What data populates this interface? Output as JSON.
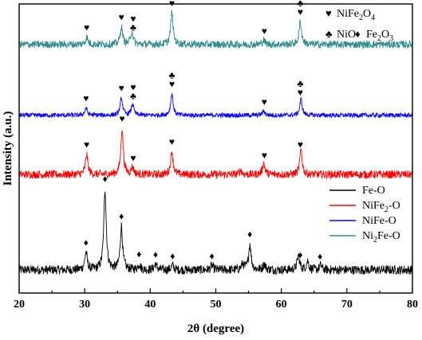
{
  "chart_data": {
    "type": "line",
    "xlabel": "2θ (degree)",
    "ylabel": "Intensity (a.u.)",
    "xlim": [
      20,
      80
    ],
    "x_ticks": [
      "20",
      "30",
      "40",
      "50",
      "60",
      "70",
      "80"
    ],
    "series": [
      {
        "name": "Fe-O",
        "color": "#000000",
        "baseline": 0.08,
        "noise": 0.016,
        "peaks": [
          {
            "x": 30.2,
            "h": 0.06
          },
          {
            "x": 33.1,
            "h": 0.28
          },
          {
            "x": 35.6,
            "h": 0.15
          },
          {
            "x": 38.3,
            "h": 0.02
          },
          {
            "x": 40.8,
            "h": 0.02
          },
          {
            "x": 43.4,
            "h": 0.015
          },
          {
            "x": 49.4,
            "h": 0.015
          },
          {
            "x": 54.1,
            "h": 0.02
          },
          {
            "x": 55.2,
            "h": 0.09
          },
          {
            "x": 57.4,
            "h": 0.02
          },
          {
            "x": 62.6,
            "h": 0.05
          },
          {
            "x": 64.0,
            "h": 0.03
          },
          {
            "x": 66.0,
            "h": 0.015
          }
        ],
        "markers": [
          {
            "x": 30.2,
            "sym": "♦"
          },
          {
            "x": 33.1,
            "sym": "♦"
          },
          {
            "x": 35.6,
            "sym": "♦"
          },
          {
            "x": 38.3,
            "sym": "♦"
          },
          {
            "x": 40.8,
            "sym": "♦"
          },
          {
            "x": 43.4,
            "sym": "♦"
          },
          {
            "x": 49.4,
            "sym": "♦"
          },
          {
            "x": 55.2,
            "sym": "♦"
          },
          {
            "x": 62.9,
            "sym": "♦"
          },
          {
            "x": 65.9,
            "sym": "♦"
          }
        ]
      },
      {
        "name": "NiFe2-O",
        "color": "#ff0000",
        "baseline": 0.41,
        "noise": 0.014,
        "peaks": [
          {
            "x": 30.3,
            "h": 0.07
          },
          {
            "x": 35.7,
            "h": 0.16
          },
          {
            "x": 37.3,
            "h": 0.025
          },
          {
            "x": 43.3,
            "h": 0.08
          },
          {
            "x": 53.8,
            "h": 0.015
          },
          {
            "x": 57.3,
            "h": 0.04
          },
          {
            "x": 63.0,
            "h": 0.085
          }
        ],
        "markers": [
          {
            "x": 30.3,
            "sym": "♥"
          },
          {
            "x": 35.7,
            "sym": "♥"
          },
          {
            "x": 37.4,
            "sym": "♥"
          },
          {
            "x": 43.3,
            "sym": "♥"
          },
          {
            "x": 57.4,
            "sym": "♥"
          },
          {
            "x": 62.9,
            "sym": "♥"
          }
        ]
      },
      {
        "name": "NiFe-O",
        "color": "#0000ff",
        "baseline": 0.615,
        "noise": 0.008,
        "peaks": [
          {
            "x": 30.2,
            "h": 0.025
          },
          {
            "x": 35.6,
            "h": 0.06
          },
          {
            "x": 37.3,
            "h": 0.04
          },
          {
            "x": 43.3,
            "h": 0.075
          },
          {
            "x": 57.3,
            "h": 0.015
          },
          {
            "x": 63.0,
            "h": 0.055
          }
        ],
        "markers": [
          {
            "x": 30.2,
            "sym": "♥"
          },
          {
            "x": 35.6,
            "sym": "♥"
          },
          {
            "x": 37.4,
            "sym": "♥♣"
          },
          {
            "x": 43.3,
            "sym": "♣♥"
          },
          {
            "x": 57.4,
            "sym": "♥"
          },
          {
            "x": 62.9,
            "sym": "♣♥"
          }
        ]
      },
      {
        "name": "Ni2Fe-O",
        "color": "#2e8b8b",
        "baseline": 0.86,
        "noise": 0.013,
        "peaks": [
          {
            "x": 30.3,
            "h": 0.025
          },
          {
            "x": 35.6,
            "h": 0.06
          },
          {
            "x": 37.2,
            "h": 0.045
          },
          {
            "x": 43.3,
            "h": 0.11
          },
          {
            "x": 57.3,
            "h": 0.015
          },
          {
            "x": 62.9,
            "h": 0.08
          }
        ],
        "markers": [
          {
            "x": 30.3,
            "sym": "♥"
          },
          {
            "x": 35.6,
            "sym": "♥"
          },
          {
            "x": 37.4,
            "sym": "♥♣"
          },
          {
            "x": 43.3,
            "sym": "♣♥"
          },
          {
            "x": 57.4,
            "sym": "♥"
          },
          {
            "x": 62.9,
            "sym": "♣♥"
          }
        ]
      }
    ],
    "phase_legend": [
      {
        "symbol": "♥",
        "phase": "NiFe",
        "sub": "2",
        "rest": "O",
        "sub2": "4"
      },
      {
        "symbol": "♣",
        "phase": "NiO",
        "sub": "",
        "rest": "",
        "sub2": ""
      },
      {
        "symbol": "♦",
        "phase": "Fe",
        "sub": "2",
        "rest": "O",
        "sub2": "3"
      }
    ],
    "series_legend": [
      {
        "label": "Fe-O",
        "pre": "Fe-O",
        "sub": "",
        "post": "",
        "color": "#000000"
      },
      {
        "label": "NiFe2-O",
        "pre": "NiFe",
        "sub": "2",
        "post": "-O",
        "color": "#ff0000"
      },
      {
        "label": "NiFe-O",
        "pre": "NiFe-O",
        "sub": "",
        "post": "",
        "color": "#0000ff"
      },
      {
        "label": "Ni2Fe-O",
        "pre": "Ni",
        "sub": "2",
        "post": "Fe-O",
        "color": "#2e8b8b"
      }
    ],
    "legend_position": "right",
    "grid": false
  }
}
